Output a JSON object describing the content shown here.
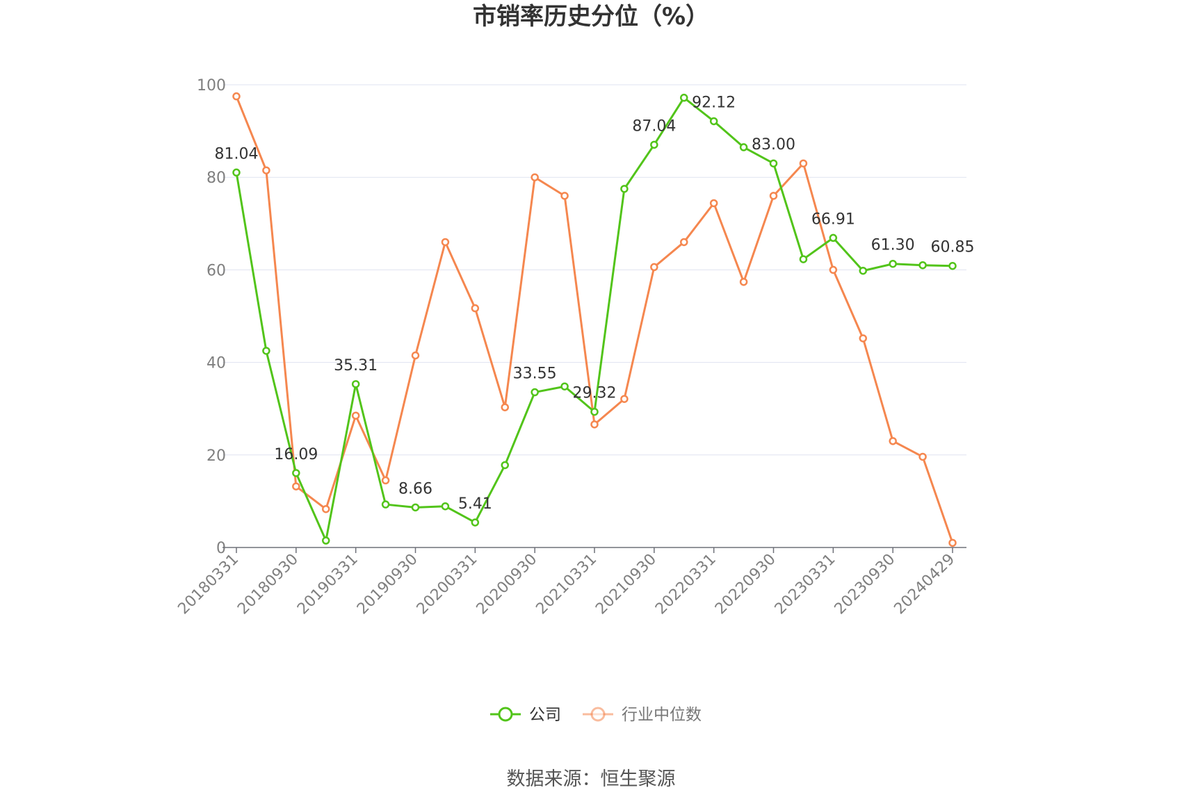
{
  "title": "市销率历史分位（%）",
  "source": "数据来源：恒生聚源",
  "colors": {
    "company": "#52c41a",
    "industry": "#f5874f",
    "grid": "#dfe3f0",
    "axis": "#6e7079"
  },
  "legend": [
    {
      "name": "公司",
      "color": "#52c41a"
    },
    {
      "name": "行业中位数",
      "color": "#f5874f"
    }
  ],
  "chart_data": {
    "type": "line",
    "title": "市销率历史分位（%）",
    "ylim": [
      0,
      100
    ],
    "y_ticks": [
      0,
      20,
      40,
      60,
      80,
      100
    ],
    "x": [
      "20180331",
      "20180630",
      "20180930",
      "20181231",
      "20190331",
      "20190630",
      "20190930",
      "20191231",
      "20200331",
      "20200630",
      "20200930",
      "20201231",
      "20210331",
      "20210630",
      "20210930",
      "20211231",
      "20220331",
      "20220630",
      "20220930",
      "20221231",
      "20230331",
      "20230630",
      "20230930",
      "20231231",
      "20240429"
    ],
    "x_tick_labels": [
      "20180331",
      "20180930",
      "20190331",
      "20190930",
      "20200331",
      "20200930",
      "20210331",
      "20210930",
      "20220331",
      "20220930",
      "20230331",
      "20230930",
      "20240429"
    ],
    "grid": true,
    "legend_position": "bottom",
    "series": [
      {
        "name": "公司",
        "values": [
          81.04,
          42.5,
          16.09,
          1.5,
          35.31,
          9.3,
          8.66,
          8.9,
          5.41,
          17.8,
          33.55,
          34.8,
          29.32,
          77.5,
          87.04,
          97.2,
          92.12,
          86.5,
          83.0,
          62.3,
          66.91,
          59.8,
          61.3,
          61.0,
          60.85
        ],
        "labels": [
          "81.04",
          "",
          "16.09",
          "",
          "35.31",
          "",
          "8.66",
          "",
          "5.41",
          "",
          "33.55",
          "",
          "29.32",
          "",
          "87.04",
          "",
          "92.12",
          "",
          "83.00",
          "",
          "66.91",
          "",
          "61.30",
          "",
          "60.85"
        ]
      },
      {
        "name": "行业中位数",
        "values": [
          97.5,
          81.5,
          13.2,
          8.3,
          28.5,
          14.5,
          41.5,
          66.0,
          51.7,
          30.3,
          80.0,
          76.0,
          26.6,
          32.1,
          60.6,
          66.0,
          74.4,
          57.4,
          76.0,
          83.0,
          60.0,
          45.2,
          23.0,
          19.6,
          1.0
        ]
      }
    ]
  }
}
